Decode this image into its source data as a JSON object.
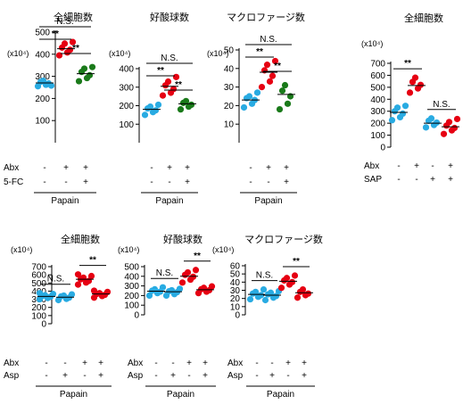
{
  "colors": {
    "blue": "#29abe2",
    "red": "#e60012",
    "green": "#1a7a1a",
    "axis": "#000000"
  },
  "chart_data": [
    {
      "type": "scatter",
      "title": "全細胞数",
      "unit": "(x10⁴)",
      "ylim": [
        0,
        500
      ],
      "yticks": [
        100,
        200,
        300,
        400,
        500
      ],
      "ytick_labels": [
        "100",
        "200",
        "300",
        "400",
        "500"
      ],
      "groups": [
        {
          "color": "blue",
          "mean": 270,
          "values": [
            255,
            262,
            268,
            275,
            280,
            258
          ]
        },
        {
          "color": "red",
          "mean": 425,
          "values": [
            395,
            408,
            420,
            430,
            448,
            455
          ]
        },
        {
          "color": "green",
          "mean": 312,
          "values": [
            278,
            292,
            305,
            320,
            335,
            342
          ]
        }
      ],
      "brackets": [
        {
          "from": 0,
          "to": 2,
          "level": 2,
          "label": "N.S."
        },
        {
          "from": 0,
          "to": 1,
          "level": 1,
          "label": "**"
        },
        {
          "from": 1,
          "to": 2,
          "level": 0,
          "label": "**"
        }
      ],
      "rows": [
        {
          "label": "Abx",
          "values": [
            "-",
            "+",
            "+"
          ]
        },
        {
          "label": "5-FC",
          "values": [
            "-",
            "-",
            "+"
          ]
        }
      ],
      "underline_label": "Papain"
    },
    {
      "type": "scatter",
      "title": "好酸球数",
      "unit": "(x10⁴)",
      "ylim": [
        0,
        400
      ],
      "yticks": [
        100,
        200,
        300,
        400
      ],
      "ytick_labels": [
        "100",
        "200",
        "300",
        "400"
      ],
      "groups": [
        {
          "color": "blue",
          "mean": 180,
          "values": [
            150,
            165,
            175,
            185,
            195,
            205
          ]
        },
        {
          "color": "red",
          "mean": 305,
          "values": [
            255,
            270,
            290,
            310,
            330,
            355
          ]
        },
        {
          "color": "green",
          "mean": 210,
          "values": [
            180,
            195,
            205,
            215,
            225
          ]
        }
      ],
      "brackets": [
        {
          "from": 0,
          "to": 2,
          "level": 2,
          "label": "N.S."
        },
        {
          "from": 0,
          "to": 1,
          "level": 1,
          "label": "**"
        },
        {
          "from": 1,
          "to": 2,
          "level": 0,
          "label": "**"
        }
      ],
      "rows": [
        {
          "label": "",
          "values": [
            "-",
            "+",
            "+"
          ]
        },
        {
          "label": "",
          "values": [
            "-",
            "-",
            "+"
          ]
        }
      ],
      "underline_label": "Papain"
    },
    {
      "type": "scatter",
      "title": "マクロファージ数",
      "unit": "(x10⁴)",
      "ylim": [
        0,
        50
      ],
      "yticks": [
        10,
        20,
        30,
        40,
        50
      ],
      "ytick_labels": [
        "10",
        "20",
        "30",
        "40",
        "50"
      ],
      "groups": [
        {
          "color": "blue",
          "mean": 23,
          "values": [
            19,
            21,
            23,
            24,
            25,
            27
          ]
        },
        {
          "color": "red",
          "mean": 38,
          "values": [
            30,
            33,
            36,
            39,
            42,
            44
          ]
        },
        {
          "color": "green",
          "mean": 26,
          "values": [
            18,
            21,
            25,
            28,
            31
          ]
        }
      ],
      "brackets": [
        {
          "from": 0,
          "to": 2,
          "level": 2,
          "label": "N.S."
        },
        {
          "from": 0,
          "to": 1,
          "level": 1,
          "label": "**"
        },
        {
          "from": 1,
          "to": 2,
          "level": 0,
          "label": "**"
        }
      ],
      "rows": [
        {
          "label": "",
          "values": [
            "-",
            "+",
            "+"
          ]
        },
        {
          "label": "",
          "values": [
            "-",
            "-",
            "+"
          ]
        }
      ],
      "underline_label": "Papain"
    },
    {
      "type": "scatter",
      "title": "全細胞数",
      "unit": "(x10⁴)",
      "ylim": [
        0,
        700
      ],
      "yticks": [
        0,
        100,
        200,
        300,
        400,
        500,
        600,
        700
      ],
      "ytick_labels": [
        "0",
        "100",
        "200",
        "300",
        "400",
        "500",
        "600",
        "700"
      ],
      "groups": [
        {
          "color": "blue",
          "mean": 290,
          "values": [
            225,
            250,
            280,
            300,
            330,
            345
          ]
        },
        {
          "color": "red",
          "mean": 515,
          "values": [
            455,
            490,
            520,
            545,
            580
          ]
        },
        {
          "color": "blue",
          "mean": 200,
          "values": [
            165,
            185,
            205,
            220,
            240
          ]
        },
        {
          "color": "red",
          "mean": 170,
          "values": [
            110,
            140,
            160,
            180,
            210,
            235
          ]
        }
      ],
      "brackets": [
        {
          "from": 0,
          "to": 1,
          "level": 0,
          "label": "**"
        },
        {
          "from": 2,
          "to": 3,
          "level": 0,
          "label": "N.S."
        }
      ],
      "rows": [
        {
          "label": "Abx",
          "values": [
            "-",
            "+",
            "-",
            "+"
          ]
        },
        {
          "label": "SAP",
          "values": [
            "-",
            "-",
            "+",
            "+"
          ]
        }
      ],
      "underline_label": ""
    },
    {
      "type": "scatter",
      "title": "全細胞数",
      "unit": "(x10⁴)",
      "ylim": [
        0,
        700
      ],
      "yticks": [
        0,
        100,
        200,
        300,
        400,
        500,
        600,
        700
      ],
      "ytick_labels": [
        "0",
        "100",
        "200",
        "300",
        "400",
        "500",
        "600",
        "700"
      ],
      "groups": [
        {
          "color": "blue",
          "mean": 335,
          "values": [
            300,
            315,
            330,
            340,
            350,
            365,
            375
          ]
        },
        {
          "color": "blue",
          "mean": 325,
          "values": [
            290,
            305,
            320,
            335,
            345,
            360
          ]
        },
        {
          "color": "red",
          "mean": 545,
          "values": [
            480,
            505,
            525,
            545,
            565,
            585,
            605
          ]
        },
        {
          "color": "red",
          "mean": 365,
          "values": [
            320,
            340,
            355,
            365,
            375,
            390,
            405
          ]
        }
      ],
      "brackets": [
        {
          "from": 0,
          "to": 1,
          "level": 0,
          "label": "N.S."
        },
        {
          "from": 2,
          "to": 3,
          "level": 0,
          "label": "**"
        }
      ],
      "rows": [
        {
          "label": "Abx",
          "values": [
            "-",
            "-",
            "+",
            "+"
          ]
        },
        {
          "label": "Asp",
          "values": [
            "-",
            "+",
            "-",
            "+"
          ]
        }
      ],
      "underline_label": "Papain"
    },
    {
      "type": "scatter",
      "title": "好酸球数",
      "unit": "(x10⁴)",
      "ylim": [
        0,
        500
      ],
      "yticks": [
        0,
        100,
        200,
        300,
        400,
        500
      ],
      "ytick_labels": [
        "0",
        "100",
        "200",
        "300",
        "400",
        "500"
      ],
      "groups": [
        {
          "color": "blue",
          "mean": 245,
          "values": [
            200,
            225,
            240,
            250,
            265,
            285
          ]
        },
        {
          "color": "blue",
          "mean": 240,
          "values": [
            200,
            215,
            235,
            245,
            255,
            270
          ]
        },
        {
          "color": "red",
          "mean": 400,
          "values": [
            335,
            365,
            395,
            415,
            440,
            465
          ]
        },
        {
          "color": "red",
          "mean": 260,
          "values": [
            225,
            240,
            255,
            265,
            280,
            295
          ]
        }
      ],
      "brackets": [
        {
          "from": 0,
          "to": 1,
          "level": 0,
          "label": "N.S."
        },
        {
          "from": 2,
          "to": 3,
          "level": 0,
          "label": "**"
        }
      ],
      "rows": [
        {
          "label": "Abx",
          "values": [
            "-",
            "-",
            "+",
            "+"
          ]
        },
        {
          "label": "Asp",
          "values": [
            "-",
            "+",
            "-",
            "+"
          ]
        }
      ],
      "underline_label": "Papain"
    },
    {
      "type": "scatter",
      "title": "マクロファージ数",
      "unit": "(x10⁴)",
      "ylim": [
        0,
        60
      ],
      "yticks": [
        0,
        10,
        20,
        30,
        40,
        50,
        60
      ],
      "ytick_labels": [
        "0",
        "10",
        "20",
        "30",
        "40",
        "50",
        "60"
      ],
      "groups": [
        {
          "color": "blue",
          "mean": 25,
          "values": [
            19,
            22,
            24,
            26,
            28,
            31
          ]
        },
        {
          "color": "blue",
          "mean": 24,
          "values": [
            18,
            21,
            23,
            25,
            27,
            29
          ]
        },
        {
          "color": "red",
          "mean": 41,
          "values": [
            33,
            37,
            40,
            42,
            45,
            48
          ]
        },
        {
          "color": "red",
          "mean": 27,
          "values": [
            21,
            24,
            26,
            28,
            31
          ]
        }
      ],
      "brackets": [
        {
          "from": 0,
          "to": 1,
          "level": 0,
          "label": "N.S."
        },
        {
          "from": 2,
          "to": 3,
          "level": 0,
          "label": "**"
        }
      ],
      "rows": [
        {
          "label": "Abx",
          "values": [
            "-",
            "-",
            "+",
            "+"
          ]
        },
        {
          "label": "Asp",
          "values": [
            "-",
            "+",
            "-",
            "+"
          ]
        }
      ],
      "underline_label": "Papain"
    }
  ]
}
